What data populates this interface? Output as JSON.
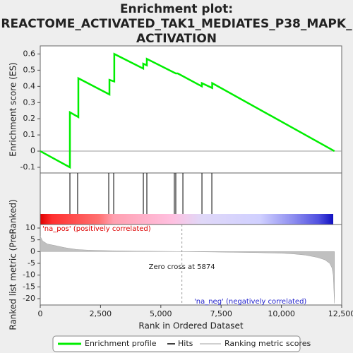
{
  "chart_data": [
    {
      "type": "line",
      "title": [
        "Enrichment plot:",
        "REACTOME_ACTIVATED_TAK1_MEDIATES_P38_MAPK_",
        "ACTIVATION"
      ],
      "y_label": "Enrichment score (ES)",
      "xlim": [
        0,
        12500
      ],
      "ylim": [
        -0.135,
        0.65
      ],
      "yticks": [
        -0.1,
        0.0,
        0.1,
        0.2,
        0.3,
        0.4,
        0.5,
        0.6
      ],
      "series": [
        {
          "name": "Enrichment profile",
          "color": "#00ee00",
          "x": [
            0,
            1230,
            1230,
            1580,
            1580,
            2870,
            2870,
            3070,
            3070,
            4270,
            4270,
            4420,
            4420,
            5620,
            5700,
            6700,
            6700,
            7130,
            7130,
            12200
          ],
          "values": [
            0.0,
            -0.1,
            0.24,
            0.21,
            0.45,
            0.35,
            0.44,
            0.43,
            0.6,
            0.51,
            0.54,
            0.53,
            0.57,
            0.48,
            0.48,
            0.4,
            0.42,
            0.39,
            0.42,
            0.0
          ]
        }
      ]
    },
    {
      "type": "rug",
      "name": "Hits",
      "color": "#000000",
      "xlim": [
        0,
        12500
      ],
      "x": [
        1230,
        1550,
        2840,
        3045,
        4275,
        4420,
        5560,
        5620,
        5915,
        6705,
        7115
      ]
    },
    {
      "type": "area",
      "y_label": "Ranked list metric (PreRanked)",
      "x_label": "Rank in Ordered Dataset",
      "xlim": [
        0,
        12500
      ],
      "xticks": [
        0,
        {
          "value": 2500,
          "label": "2,500"
        },
        {
          "value": 5000,
          "label": "5,000"
        },
        {
          "value": 7500,
          "label": "7,500"
        },
        {
          "value": 10000,
          "label": "10,000"
        },
        {
          "value": 12500,
          "label": "12,500"
        }
      ],
      "ylim": [
        -22.7,
        11.5
      ],
      "yticks": [
        -20,
        -15,
        -10,
        -5,
        0,
        5,
        10
      ],
      "zero_cross": 5874,
      "annotations": [
        "Zero cross at 5874",
        "'na_pos' (positively correlated)",
        "'na_neg' (negatively correlated)"
      ],
      "series": [
        {
          "name": "Ranking metric scores",
          "color": "#c0c0c0",
          "x": [
            0,
            100,
            300,
            600,
            1000,
            1500,
            2000,
            3000,
            4000,
            5000,
            5874,
            7000,
            8000,
            9000,
            10000,
            10500,
            11000,
            11500,
            11800,
            12000,
            12100,
            12150,
            12200
          ],
          "values": [
            6.5,
            4.5,
            3.2,
            2.6,
            1.7,
            0.9,
            0.6,
            0.35,
            0.2,
            0.1,
            0,
            -0.15,
            -0.3,
            -0.45,
            -0.7,
            -1,
            -1.5,
            -2.5,
            -3.5,
            -5,
            -7,
            -10,
            -22
          ]
        }
      ]
    }
  ]
}
